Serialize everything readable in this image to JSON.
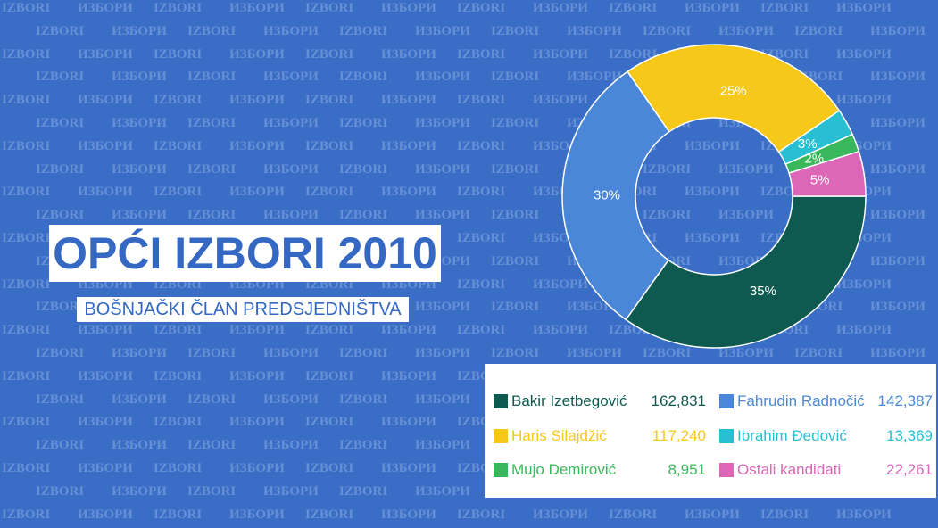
{
  "header": {
    "title": "OPĆI IZBORI 2010",
    "subtitle": "BOŠNJAČKI ČLAN PREDSJEDNIŠTVA"
  },
  "background": {
    "watermark_words": [
      "IZBORI",
      "ИЗБОРИ"
    ]
  },
  "theme": {
    "background_color": "#3a6dc5",
    "watermark_color": "#6690d6",
    "title_color": "#3468c2",
    "banner_color": "#ffffff",
    "slice_label_color": "#ffffff"
  },
  "chart_data": {
    "type": "pie",
    "style": "donut",
    "categories": [
      "Bakir Izetbegović",
      "Fahrudin Radnočić",
      "Haris Silajdžić",
      "Ibrahim Đedović",
      "Mujo Demirović",
      "Ostali kandidati"
    ],
    "values": [
      162831,
      142387,
      117240,
      13369,
      8951,
      22261
    ],
    "value_labels": [
      "162,831",
      "142,387",
      "117,240",
      "13,369",
      "8,951",
      "22,261"
    ],
    "percent_labels": [
      "35%",
      "30%",
      "25%",
      "3%",
      "2%",
      "5%"
    ],
    "colors": [
      "#0e5a50",
      "#4a87d9",
      "#f5c81a",
      "#27bfd1",
      "#38b85b",
      "#db67b6"
    ],
    "legend_placement": "bottom-right"
  }
}
